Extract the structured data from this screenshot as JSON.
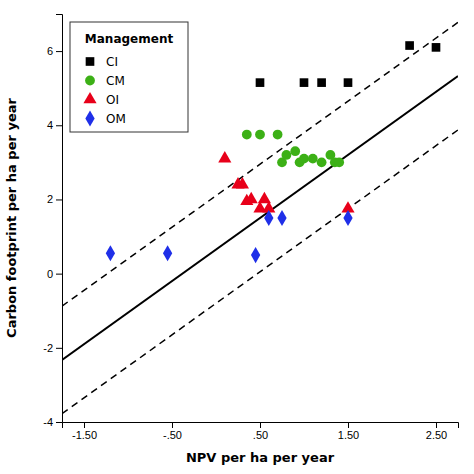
{
  "chart_data": {
    "type": "scatter",
    "xlabel": "NPV per ha per year",
    "ylabel": "Carbon footprint per ha per year",
    "legend_title": "Management",
    "legend": "upper left",
    "grid": false,
    "xlim": [
      -1.75,
      2.75
    ],
    "ylim": [
      -4,
      7
    ],
    "xticks": [
      {
        "value": -1.5,
        "label": "-1.50"
      },
      {
        "value": -0.5,
        "label": "-.50"
      },
      {
        "value": 0.5,
        "label": ".50"
      },
      {
        "value": 1.5,
        "label": "1.50"
      },
      {
        "value": 2.5,
        "label": "2.50"
      }
    ],
    "yticks": [
      -4,
      -2,
      0,
      2,
      4,
      6
    ],
    "series": [
      {
        "name": "CI",
        "type": "scatter",
        "marker": "square",
        "color": "#000000",
        "x": [
          0.5,
          1.0,
          1.2,
          1.5,
          2.2,
          2.5
        ],
        "values": [
          5.15,
          5.15,
          5.15,
          5.15,
          6.15,
          6.1
        ]
      },
      {
        "name": "CM",
        "type": "scatter",
        "marker": "circle",
        "color": "#3cb016",
        "x": [
          0.35,
          0.5,
          0.7,
          0.75,
          0.8,
          0.9,
          0.95,
          1.0,
          1.1,
          1.2,
          1.3,
          1.35,
          1.4
        ],
        "values": [
          3.75,
          3.75,
          3.75,
          3.0,
          3.2,
          3.3,
          3.0,
          3.1,
          3.1,
          3.0,
          3.2,
          3.0,
          3.0
        ]
      },
      {
        "name": "OI",
        "type": "scatter",
        "marker": "triangle",
        "color": "#e8001a",
        "x": [
          0.1,
          0.25,
          0.3,
          0.35,
          0.4,
          0.5,
          0.55,
          0.6,
          1.5
        ],
        "values": [
          3.1,
          2.4,
          2.4,
          1.95,
          2.0,
          1.75,
          2.0,
          1.75,
          1.75
        ]
      },
      {
        "name": "OM",
        "type": "scatter",
        "marker": "diamond",
        "color": "#1f2fe8",
        "x": [
          -1.2,
          -0.55,
          0.45,
          0.6,
          0.75,
          1.5
        ],
        "values": [
          0.55,
          0.55,
          0.5,
          1.5,
          1.5,
          1.5
        ]
      },
      {
        "type": "line",
        "line_style": "solid",
        "color": "#000000",
        "x": [
          -1.75,
          2.75
        ],
        "values": [
          -2.325,
          5.325
        ]
      },
      {
        "type": "line",
        "line_style": "dashed",
        "color": "#000000",
        "x": [
          -1.75,
          2.75
        ],
        "values": [
          -0.875,
          6.775
        ]
      },
      {
        "type": "line",
        "line_style": "dashed",
        "color": "#000000",
        "x": [
          -1.75,
          2.75
        ],
        "values": [
          -3.775,
          3.875
        ]
      }
    ]
  }
}
